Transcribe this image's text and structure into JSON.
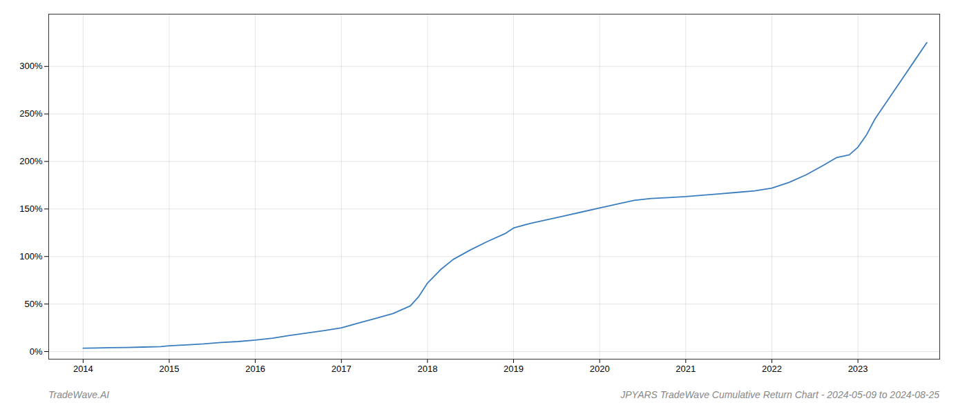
{
  "chart_data": {
    "type": "line",
    "title": "JPYARS TradeWave Cumulative Return Chart - 2024-05-09 to 2024-08-25",
    "annotations": [
      "TradeWave.AI"
    ],
    "color": "#3a7ebf",
    "grid": true,
    "x": [
      2014.0,
      2014.15,
      2014.3,
      2014.5,
      2014.7,
      2014.9,
      2015.0,
      2015.2,
      2015.4,
      2015.6,
      2015.8,
      2016.0,
      2016.2,
      2016.4,
      2016.6,
      2016.8,
      2017.0,
      2017.2,
      2017.4,
      2017.6,
      2017.8,
      2017.9,
      2018.0,
      2018.15,
      2018.3,
      2018.5,
      2018.7,
      2018.9,
      2019.0,
      2019.2,
      2019.4,
      2019.6,
      2019.8,
      2020.0,
      2020.2,
      2020.4,
      2020.6,
      2020.8,
      2021.0,
      2021.2,
      2021.4,
      2021.6,
      2021.8,
      2022.0,
      2022.2,
      2022.4,
      2022.6,
      2022.75,
      2022.8,
      2022.9,
      2023.0,
      2023.1,
      2023.2,
      2023.35,
      2023.5,
      2023.65,
      2023.8
    ],
    "values": [
      3.5,
      3.7,
      4.0,
      4.3,
      4.7,
      5.2,
      6.0,
      7.0,
      8.0,
      9.5,
      10.5,
      12.0,
      14.0,
      17.0,
      19.5,
      22.0,
      25.0,
      30.0,
      35.0,
      40.0,
      48.0,
      58.0,
      72.0,
      86.0,
      97.0,
      107.0,
      116.0,
      124.0,
      130.0,
      135.0,
      139.0,
      143.0,
      147.0,
      151.0,
      155.0,
      159.0,
      161.0,
      162.0,
      163.0,
      164.5,
      166.0,
      167.5,
      169.0,
      172.0,
      178.0,
      186.0,
      196.0,
      204.0,
      205.0,
      207.0,
      215.0,
      228.0,
      245.0,
      265.0,
      285.0,
      305.0,
      325.0
    ],
    "xlim": [
      2013.6,
      2023.95
    ],
    "ylim": [
      -8,
      355
    ],
    "xticks": [
      2014,
      2015,
      2016,
      2017,
      2018,
      2019,
      2020,
      2021,
      2022,
      2023
    ],
    "yticks": [
      {
        "value": 0,
        "label": "0%"
      },
      {
        "value": 50,
        "label": "50%"
      },
      {
        "value": 100,
        "label": "100%"
      },
      {
        "value": 150,
        "label": "150%"
      },
      {
        "value": 200,
        "label": "200%"
      },
      {
        "value": 250,
        "label": "250%"
      },
      {
        "value": 300,
        "label": "300%"
      }
    ]
  }
}
